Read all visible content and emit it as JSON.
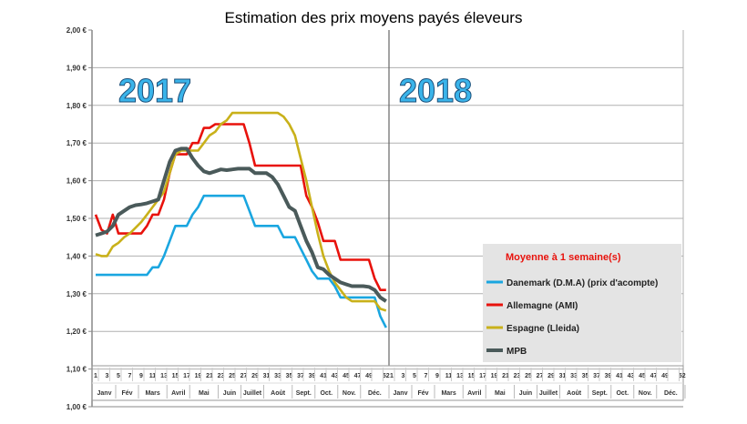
{
  "chart_data": {
    "type": "line",
    "title": "Estimation des prix moyens payés éleveurs",
    "ylim": [
      1.0,
      2.0
    ],
    "y_ticks": [
      "1,00 €",
      "1,10 €",
      "1,20 €",
      "1,30 €",
      "1,40 €",
      "1,50 €",
      "1,60 €",
      "1,70 €",
      "1,80 €",
      "1,90 €",
      "2,00 €"
    ],
    "grid": true,
    "years": [
      "2017",
      "2018"
    ],
    "week_ticks": [
      "1",
      "3",
      "5",
      "7",
      "9",
      "11",
      "13",
      "15",
      "17",
      "19",
      "21",
      "23",
      "25",
      "27",
      "29",
      "31",
      "33",
      "35",
      "37",
      "39",
      "41",
      "43",
      "45",
      "47",
      "49",
      "52"
    ],
    "months": [
      "Janv",
      "Fév",
      "Mars",
      "Avril",
      "Mai",
      "Juin",
      "Juillet",
      "Août",
      "Sept.",
      "Oct.",
      "Nov.",
      "Déc."
    ],
    "legend_title": "Moyenne à  1 semaine(s)",
    "legend_placement": "bottom-right",
    "x_weeks_2017": [
      1,
      2,
      3,
      4,
      5,
      6,
      7,
      8,
      9,
      10,
      11,
      12,
      13,
      14,
      15,
      16,
      17,
      18,
      19,
      20,
      21,
      22,
      23,
      24,
      25,
      26,
      27,
      28,
      29,
      30,
      31,
      32,
      33,
      34,
      35,
      36,
      37,
      38,
      39,
      40,
      41,
      42,
      43,
      44,
      45,
      46,
      47,
      48,
      49,
      50,
      51,
      52
    ],
    "series": [
      {
        "name": "Danemark (D.M.A) (prix d'acompte)",
        "color": "#1aa6e0",
        "values": [
          1.35,
          1.35,
          1.35,
          1.35,
          1.35,
          1.35,
          1.35,
          1.35,
          1.35,
          1.35,
          1.37,
          1.37,
          1.4,
          1.44,
          1.48,
          1.48,
          1.48,
          1.51,
          1.53,
          1.56,
          1.56,
          1.56,
          1.56,
          1.56,
          1.56,
          1.56,
          1.56,
          1.52,
          1.48,
          1.48,
          1.48,
          1.48,
          1.48,
          1.45,
          1.45,
          1.45,
          1.42,
          1.39,
          1.36,
          1.34,
          1.34,
          1.34,
          1.32,
          1.29,
          1.29,
          1.29,
          1.29,
          1.29,
          1.29,
          1.29,
          1.24,
          1.21
        ]
      },
      {
        "name": "Allemagne (AMI)",
        "color": "#e8120c",
        "values": [
          1.51,
          1.47,
          1.46,
          1.51,
          1.46,
          1.46,
          1.46,
          1.46,
          1.46,
          1.48,
          1.51,
          1.51,
          1.55,
          1.62,
          1.67,
          1.67,
          1.67,
          1.7,
          1.7,
          1.74,
          1.74,
          1.75,
          1.75,
          1.75,
          1.75,
          1.75,
          1.75,
          1.7,
          1.64,
          1.64,
          1.64,
          1.64,
          1.64,
          1.64,
          1.64,
          1.64,
          1.64,
          1.56,
          1.53,
          1.49,
          1.44,
          1.44,
          1.44,
          1.39,
          1.39,
          1.39,
          1.39,
          1.39,
          1.39,
          1.34,
          1.31,
          1.31
        ]
      },
      {
        "name": "Espagne (Lleida)",
        "color": "#c9b11a",
        "values": [
          1.405,
          1.4,
          1.4,
          1.425,
          1.435,
          1.45,
          1.46,
          1.475,
          1.49,
          1.51,
          1.53,
          1.55,
          1.57,
          1.62,
          1.67,
          1.68,
          1.68,
          1.68,
          1.68,
          1.7,
          1.72,
          1.73,
          1.75,
          1.76,
          1.78,
          1.78,
          1.78,
          1.78,
          1.78,
          1.78,
          1.78,
          1.78,
          1.78,
          1.77,
          1.75,
          1.72,
          1.66,
          1.6,
          1.53,
          1.46,
          1.4,
          1.36,
          1.33,
          1.31,
          1.29,
          1.28,
          1.28,
          1.28,
          1.28,
          1.28,
          1.26,
          1.255
        ]
      },
      {
        "name": "MPB",
        "color": "#4a5a5a",
        "values": [
          1.455,
          1.46,
          1.465,
          1.48,
          1.51,
          1.52,
          1.53,
          1.535,
          1.537,
          1.54,
          1.545,
          1.55,
          1.6,
          1.65,
          1.68,
          1.685,
          1.685,
          1.66,
          1.64,
          1.625,
          1.62,
          1.625,
          1.63,
          1.628,
          1.63,
          1.632,
          1.632,
          1.632,
          1.62,
          1.62,
          1.62,
          1.61,
          1.59,
          1.56,
          1.53,
          1.52,
          1.48,
          1.44,
          1.41,
          1.37,
          1.365,
          1.35,
          1.34,
          1.33,
          1.325,
          1.32,
          1.32,
          1.32,
          1.318,
          1.31,
          1.29,
          1.28
        ]
      }
    ]
  }
}
